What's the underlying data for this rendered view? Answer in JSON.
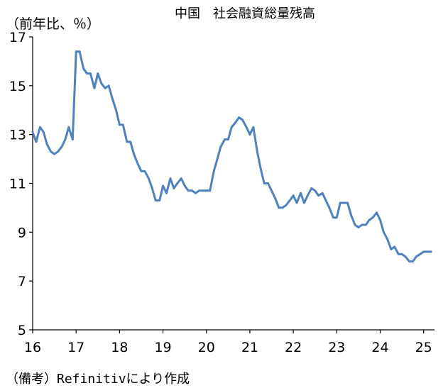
{
  "chart_data": {
    "type": "line",
    "title": "中国　社会融資総量残高",
    "ylabel": "（前年比、％）",
    "source_note": "（備考）Refinitivにより作成",
    "ylim": [
      5,
      17
    ],
    "yticks": [
      5,
      7,
      9,
      11,
      13,
      15,
      17
    ],
    "xlim": [
      2016.0,
      2025.25
    ],
    "xticks": [
      {
        "value": 2016,
        "label": "16"
      },
      {
        "value": 2017,
        "label": "17"
      },
      {
        "value": 2018,
        "label": "18"
      },
      {
        "value": 2019,
        "label": "19"
      },
      {
        "value": 2020,
        "label": "20"
      },
      {
        "value": 2021,
        "label": "21"
      },
      {
        "value": 2022,
        "label": "22"
      },
      {
        "value": 2023,
        "label": "23"
      },
      {
        "value": 2024,
        "label": "24"
      },
      {
        "value": 2025,
        "label": "25"
      }
    ],
    "grid": false,
    "line_color": "#4f81bd",
    "series": [
      {
        "x": [
          2016.0,
          2016.08,
          2016.17,
          2016.25,
          2016.33,
          2016.42,
          2016.5,
          2016.58,
          2016.67,
          2016.75,
          2016.83,
          2016.92,
          2017.0,
          2017.08,
          2017.17,
          2017.25,
          2017.33,
          2017.42,
          2017.5,
          2017.58,
          2017.67,
          2017.75,
          2017.83,
          2017.92,
          2018.0,
          2018.08,
          2018.17,
          2018.25,
          2018.33,
          2018.42,
          2018.5,
          2018.58,
          2018.67,
          2018.75,
          2018.83,
          2018.92,
          2019.0,
          2019.08,
          2019.17,
          2019.25,
          2019.33,
          2019.42,
          2019.5,
          2019.58,
          2019.67,
          2019.75,
          2019.83,
          2019.92,
          2020.0,
          2020.08,
          2020.17,
          2020.25,
          2020.33,
          2020.42,
          2020.5,
          2020.58,
          2020.67,
          2020.75,
          2020.83,
          2020.92,
          2021.0,
          2021.08,
          2021.17,
          2021.25,
          2021.33,
          2021.42,
          2021.5,
          2021.58,
          2021.67,
          2021.75,
          2021.83,
          2021.92,
          2022.0,
          2022.08,
          2022.17,
          2022.25,
          2022.33,
          2022.42,
          2022.5,
          2022.58,
          2022.67,
          2022.75,
          2022.83,
          2022.92,
          2023.0,
          2023.08,
          2023.17,
          2023.25,
          2023.33,
          2023.42,
          2023.5,
          2023.58,
          2023.67,
          2023.75,
          2023.83,
          2023.92,
          2024.0,
          2024.08,
          2024.17,
          2024.25,
          2024.33,
          2024.42,
          2024.5,
          2024.58,
          2024.67,
          2024.75,
          2024.83,
          2024.92,
          2025.0,
          2025.08,
          2025.17
        ],
        "y": [
          13.1,
          12.7,
          13.3,
          13.1,
          12.6,
          12.3,
          12.2,
          12.3,
          12.5,
          12.8,
          13.3,
          12.8,
          16.4,
          16.4,
          15.7,
          15.5,
          15.5,
          14.9,
          15.5,
          15.1,
          14.9,
          15.0,
          14.5,
          14.0,
          13.4,
          13.4,
          12.7,
          12.7,
          12.2,
          11.8,
          11.5,
          11.5,
          11.2,
          10.8,
          10.3,
          10.3,
          10.9,
          10.6,
          11.2,
          10.8,
          11.0,
          11.2,
          10.9,
          10.7,
          10.7,
          10.6,
          10.7,
          10.7,
          10.7,
          10.7,
          11.5,
          12.0,
          12.5,
          12.8,
          12.8,
          13.3,
          13.5,
          13.7,
          13.6,
          13.3,
          13.0,
          13.3,
          12.3,
          11.6,
          11.0,
          11.0,
          10.7,
          10.4,
          10.0,
          10.0,
          10.1,
          10.3,
          10.5,
          10.2,
          10.6,
          10.2,
          10.5,
          10.8,
          10.7,
          10.5,
          10.6,
          10.3,
          10.0,
          9.6,
          9.6,
          10.2,
          10.2,
          10.2,
          9.7,
          9.3,
          9.2,
          9.3,
          9.3,
          9.5,
          9.6,
          9.8,
          9.5,
          9.0,
          8.7,
          8.3,
          8.4,
          8.1,
          8.1,
          8.0,
          7.8,
          7.8,
          8.0,
          8.1,
          8.2,
          8.2,
          8.2
        ]
      }
    ]
  }
}
